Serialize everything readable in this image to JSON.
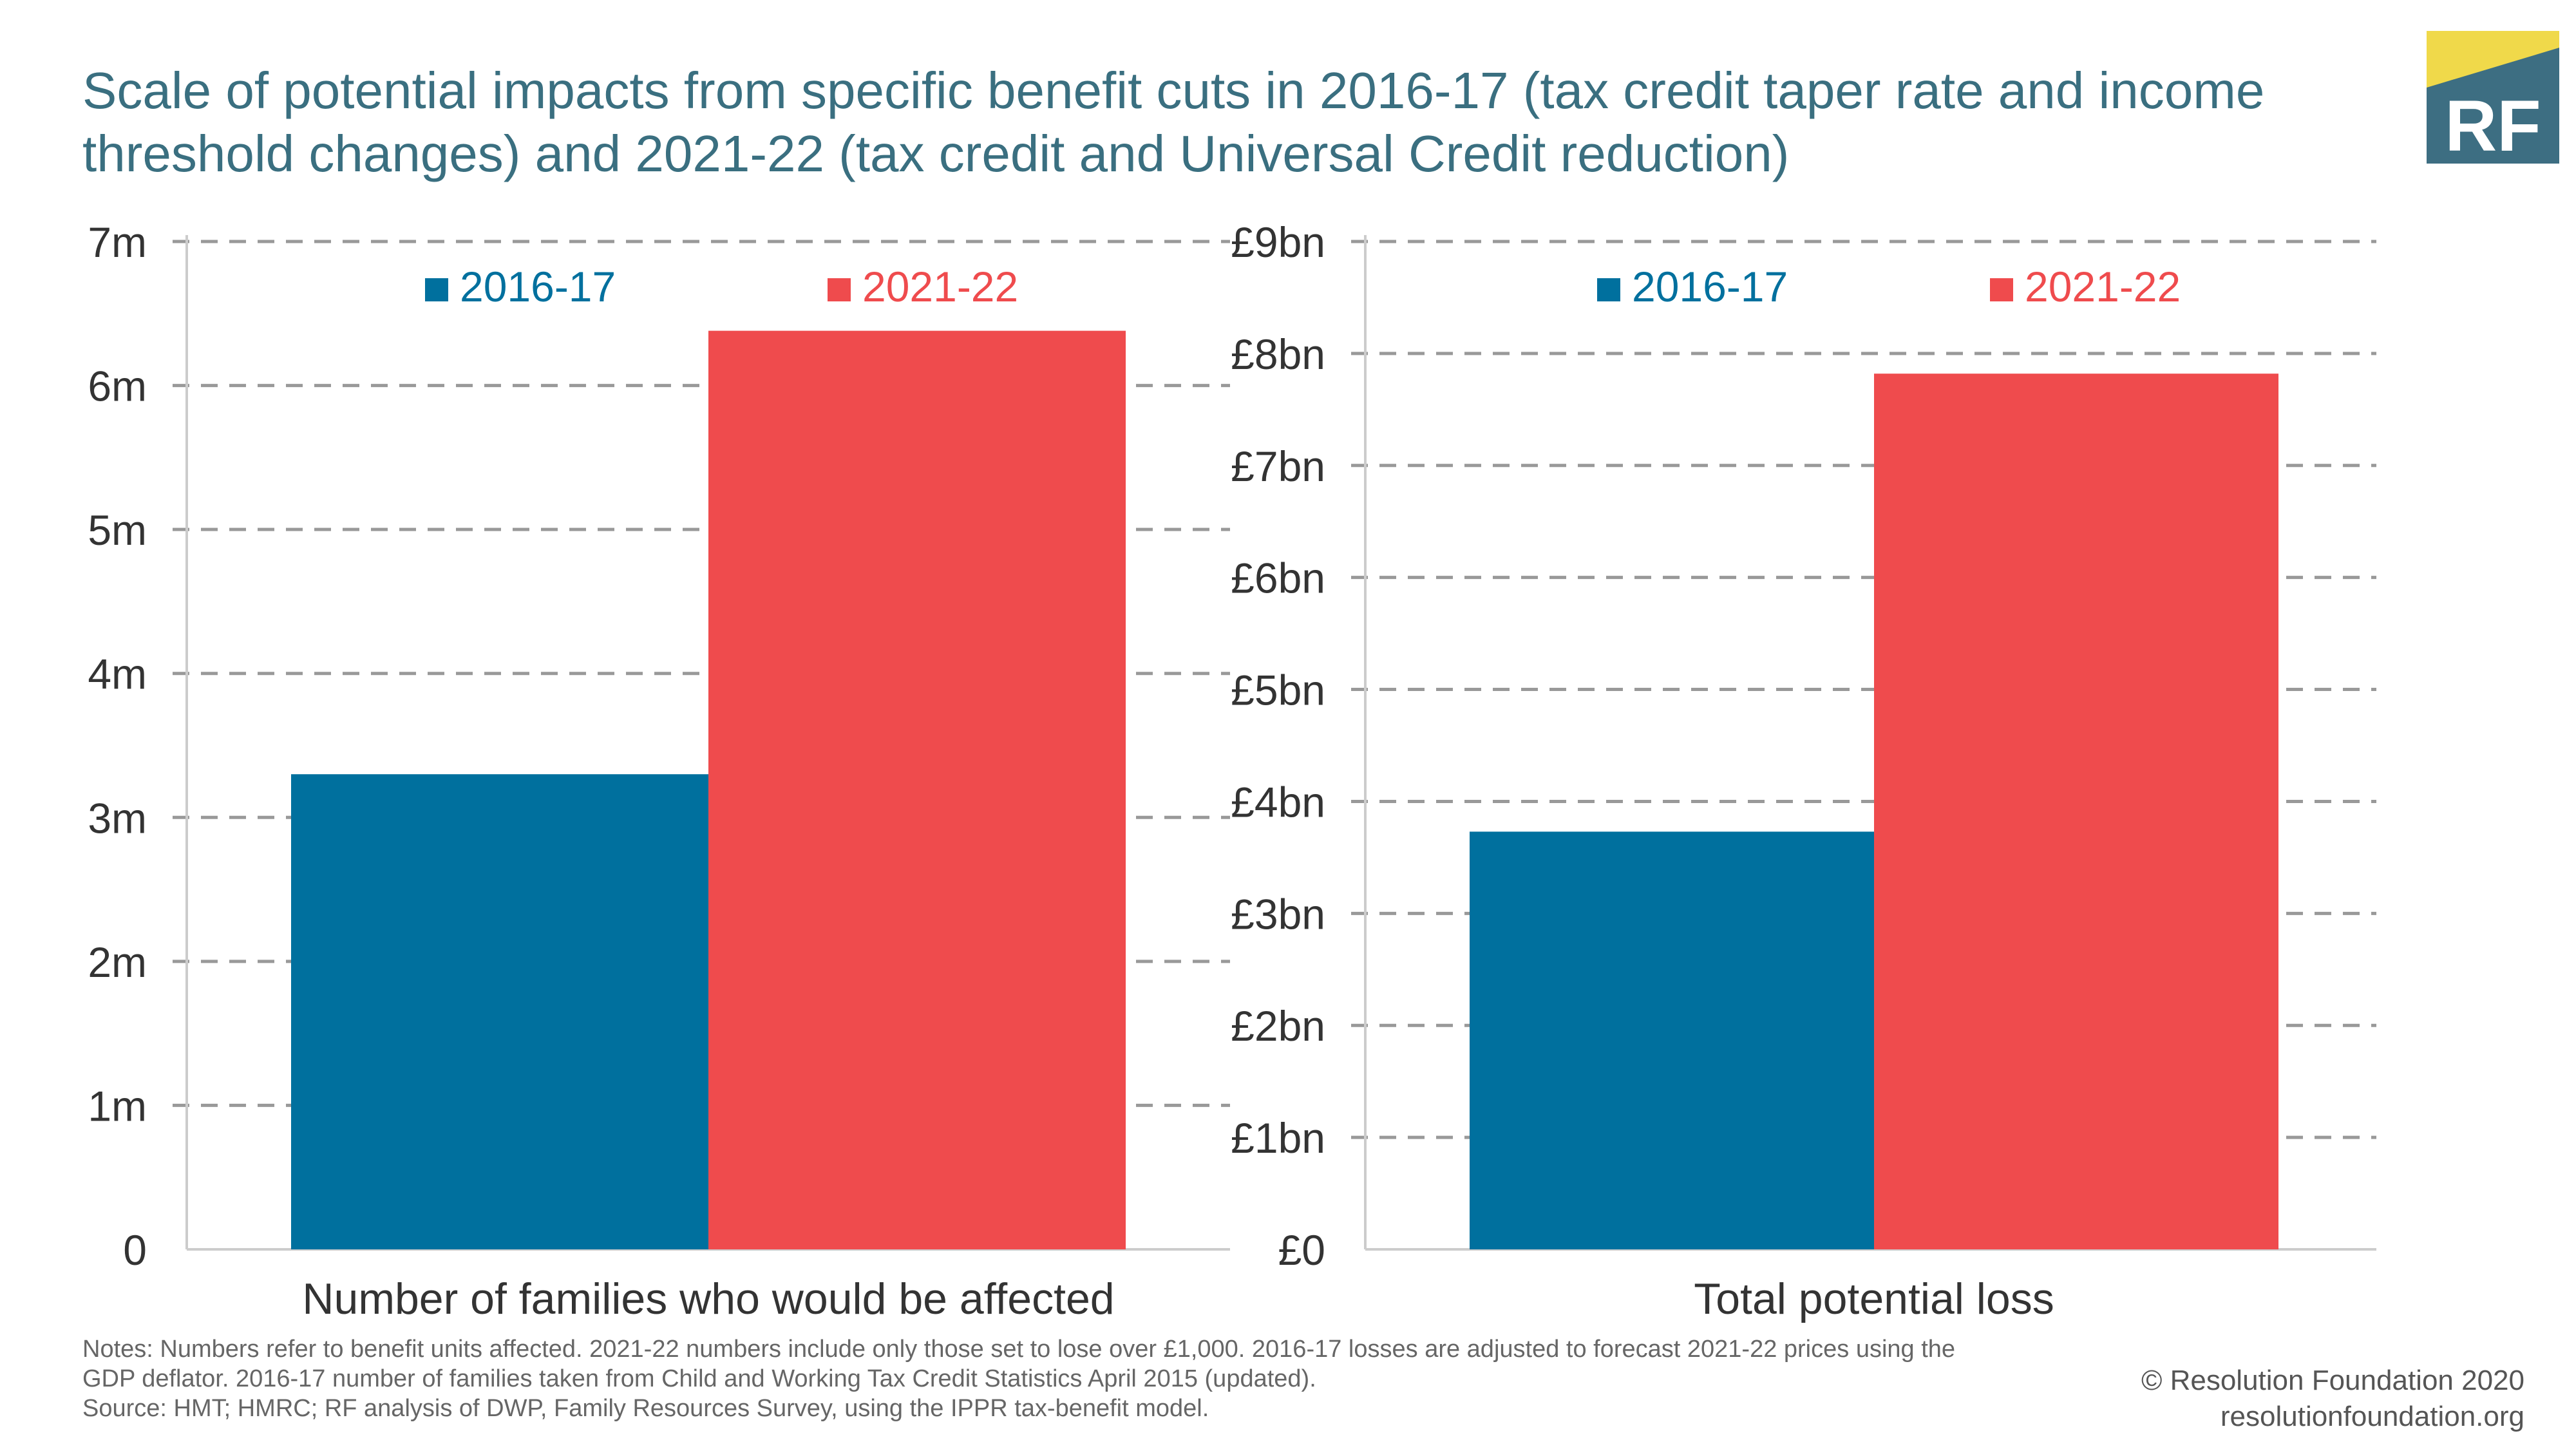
{
  "title": "Scale of potential impacts from specific benefit cuts in 2016-17 (tax credit taper rate and income threshold changes) and 2021-22 (tax credit and Universal Credit reduction)",
  "logo": {
    "text": "RF",
    "bg_color": "#3d6e82",
    "accent_color": "#f0d94a"
  },
  "colors": {
    "series_2016": "#00709e",
    "series_2021": "#ef4b4d",
    "grid": "#999999",
    "axis_text": "#333333"
  },
  "chart_data": [
    {
      "type": "bar",
      "categories": [
        "Number of families who would be affected"
      ],
      "xlabel": "Number of families who would be affected",
      "ylim": [
        0,
        7000000
      ],
      "yticks": [
        0,
        1000000,
        2000000,
        3000000,
        4000000,
        5000000,
        6000000,
        7000000
      ],
      "yticklabels": [
        "0",
        "1m",
        "2m",
        "3m",
        "4m",
        "5m",
        "6m",
        "7m"
      ],
      "grid": true,
      "legend": "top",
      "series": [
        {
          "name": "2016-17",
          "values": [
            3300000
          ]
        },
        {
          "name": "2021-22",
          "values": [
            6380000
          ]
        }
      ]
    },
    {
      "type": "bar",
      "categories": [
        "Total potential loss"
      ],
      "xlabel": "Total potential loss",
      "ylim": [
        0,
        9
      ],
      "yticks": [
        0,
        1,
        2,
        3,
        4,
        5,
        6,
        7,
        8,
        9
      ],
      "yticklabels": [
        "£0",
        "£1bn",
        "£2bn",
        "£3bn",
        "£4bn",
        "£5bn",
        "£6bn",
        "£7bn",
        "£8bn",
        "£9bn"
      ],
      "grid": true,
      "legend": "top",
      "series": [
        {
          "name": "2016-17",
          "values": [
            3.73
          ]
        },
        {
          "name": "2021-22",
          "values": [
            7.82
          ]
        }
      ]
    }
  ],
  "notes": {
    "line1": "Notes: Numbers refer to benefit units affected. 2021-22 numbers include only those set to lose over £1,000. 2016-17 losses are adjusted to forecast 2021-22 prices using the",
    "line2": "GDP deflator. 2016-17 number of families taken from Child and Working Tax Credit Statistics April 2015 (updated).",
    "line3": "Source: HMT; HMRC; RF analysis of DWP, Family Resources Survey, using the IPPR tax-benefit model."
  },
  "copyright": {
    "line1": "© Resolution Foundation 2020",
    "line2": "resolutionfoundation.org"
  }
}
